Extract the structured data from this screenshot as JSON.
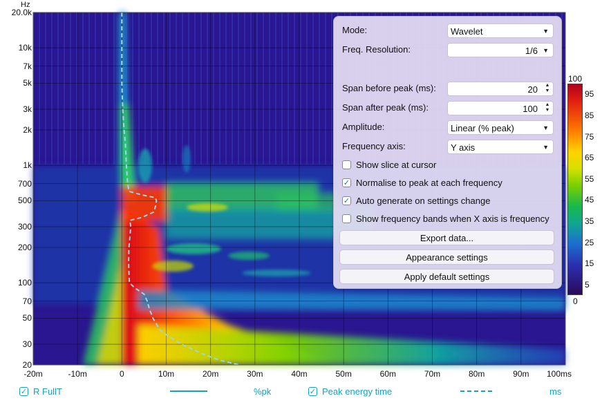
{
  "y_axis": {
    "unit": "Hz",
    "ticks": [
      "20.0k",
      "10k",
      "7k",
      "5k",
      "3k",
      "2k",
      "1k",
      "700",
      "500",
      "300",
      "200",
      "100",
      "70",
      "50",
      "30",
      "20"
    ],
    "tick_values": [
      20000,
      10000,
      7000,
      5000,
      3000,
      2000,
      1000,
      700,
      500,
      300,
      200,
      100,
      70,
      50,
      30,
      20
    ]
  },
  "x_axis": {
    "ticks": [
      "-20m",
      "-10m",
      "0",
      "10m",
      "20m",
      "30m",
      "40m",
      "50m",
      "60m",
      "70m",
      "80m",
      "90m",
      "100ms"
    ],
    "tick_values": [
      -20,
      -10,
      0,
      10,
      20,
      30,
      40,
      50,
      60,
      70,
      80,
      90,
      100
    ]
  },
  "panel": {
    "mode_label": "Mode:",
    "mode_value": "Wavelet",
    "freq_res_label": "Freq. Resolution:",
    "freq_res_value": "1/6",
    "span_before_label": "Span before peak (ms):",
    "span_before_value": "20",
    "span_after_label": "Span after peak (ms):",
    "span_after_value": "100",
    "amplitude_label": "Amplitude:",
    "amplitude_value": "Linear (% peak)",
    "freq_axis_label": "Frequency axis:",
    "freq_axis_value": "Y axis",
    "checks": [
      {
        "label": "Show slice at cursor",
        "checked": false
      },
      {
        "label": "Normalise to peak at each frequency",
        "checked": true
      },
      {
        "label": "Auto generate on settings change",
        "checked": true
      },
      {
        "label": "Show frequency bands when X axis is frequency",
        "checked": false
      }
    ],
    "export_btn": "Export data...",
    "appearance_btn": "Appearance settings",
    "defaults_btn": "Apply default settings"
  },
  "color_scale": {
    "top": "100",
    "bottom": "0",
    "labels": [
      "95",
      "85",
      "75",
      "65",
      "55",
      "45",
      "35",
      "25",
      "15",
      "5"
    ]
  },
  "legend": {
    "trace1_label": "R FullT",
    "trace1_unit": "%pk",
    "trace2_label": "Peak energy time",
    "trace2_unit": "ms",
    "color": "#1aa0b8"
  },
  "chart_data": {
    "type": "heatmap",
    "xlabel": "",
    "ylabel": "Hz",
    "xlim": [
      -20,
      100
    ],
    "ylim": [
      20,
      20000
    ],
    "y_scale": "log",
    "color_range": [
      0,
      100
    ],
    "peak_energy_time": {
      "name": "Peak energy time",
      "freq": [
        20000,
        10000,
        5000,
        3000,
        2000,
        1500,
        1000,
        800,
        700,
        600,
        560,
        530,
        500,
        450,
        400,
        360,
        340,
        300,
        200,
        150,
        100,
        90,
        80,
        70,
        60,
        50,
        40,
        35,
        30,
        25,
        22,
        20
      ],
      "time_ms": [
        0,
        0,
        0,
        0.2,
        0.5,
        0.8,
        1.0,
        1.2,
        1.3,
        1.6,
        4.5,
        7.5,
        7.8,
        7.6,
        7.2,
        4.5,
        1.8,
        2.0,
        1.6,
        1.5,
        1.7,
        3.0,
        5.0,
        5.7,
        6.2,
        7.0,
        8.5,
        10.5,
        13.5,
        18.0,
        22.0,
        26.5
      ]
    }
  }
}
